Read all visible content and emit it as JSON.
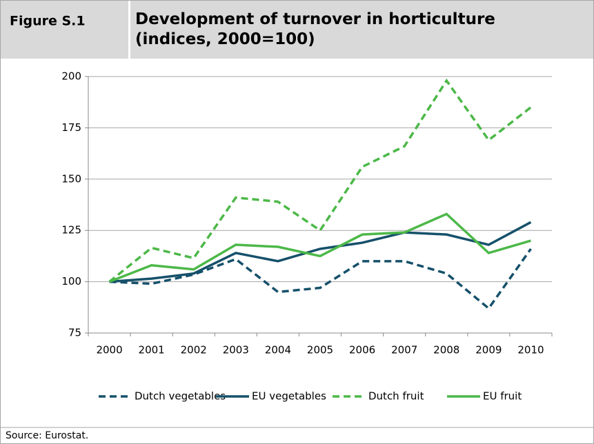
{
  "figure_label": "Figure S.1",
  "source": "Source: Eurostat.",
  "chart_data": {
    "type": "line",
    "title": "Development of turnover in horticulture (indices, 2000=100)",
    "categories": [
      "2000",
      "2001",
      "2002",
      "2003",
      "2004",
      "2005",
      "2006",
      "2007",
      "2008",
      "2009",
      "2010"
    ],
    "series": [
      {
        "name": "Dutch vegetables",
        "color": "#15506a",
        "dashed": true,
        "values": [
          100,
          99,
          103.5,
          111,
          95,
          97,
          110,
          110,
          104,
          87,
          116
        ]
      },
      {
        "name": "EU vegetables",
        "color": "#15506a",
        "dashed": false,
        "values": [
          100,
          101.5,
          104,
          114,
          110,
          116,
          119,
          124,
          123,
          118,
          129
        ]
      },
      {
        "name": "Dutch fruit",
        "color": "#4cb848",
        "dashed": true,
        "values": [
          100,
          116.5,
          111.5,
          141,
          139,
          125,
          156,
          166,
          198,
          169,
          185
        ]
      },
      {
        "name": "EU fruit",
        "color": "#4cb848",
        "dashed": false,
        "values": [
          100,
          108,
          106,
          118,
          117,
          112.5,
          123,
          124,
          133,
          114,
          120
        ]
      }
    ],
    "ylim": [
      75,
      200
    ],
    "yticks": [
      75,
      100,
      125,
      150,
      175,
      200
    ],
    "grid": true,
    "legend": "bottom"
  }
}
